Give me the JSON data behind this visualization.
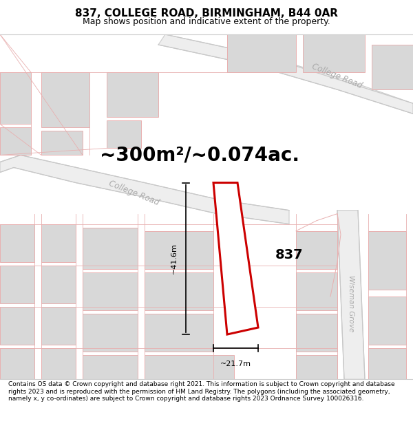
{
  "title_line1": "837, COLLEGE ROAD, BIRMINGHAM, B44 0AR",
  "title_line2": "Map shows position and indicative extent of the property.",
  "area_text": "~300m²/~0.074ac.",
  "property_label": "837",
  "dim_width": "~21.7m",
  "dim_height": "~41.6m",
  "footer_text": "Contains OS data © Crown copyright and database right 2021. This information is subject to Crown copyright and database rights 2023 and is reproduced with the permission of HM Land Registry. The polygons (including the associated geometry, namely x, y co-ordinates) are subject to Crown copyright and database rights 2023 Ordnance Survey 100026316.",
  "map_bg": "#ffffff",
  "road_band_color": "#e8e8e8",
  "road_line_color": "#c8b8b8",
  "road_line_color2": "#d0c0c0",
  "property_fill": "#ffffff",
  "property_edge": "#cc0000",
  "building_fill": "#d8d8d8",
  "building_edge": "#c0c0c0",
  "pink_line": "#e8b0b0",
  "gray_line": "#c8c8c8",
  "road_label_color": "#b0b0b0",
  "college_road_label": "College Road",
  "wiseman_grove_label": "Wiseman Grove",
  "title_fontsize": 11,
  "subtitle_fontsize": 9,
  "area_fontsize": 20,
  "label_fontsize": 14,
  "footer_fontsize": 6.5
}
